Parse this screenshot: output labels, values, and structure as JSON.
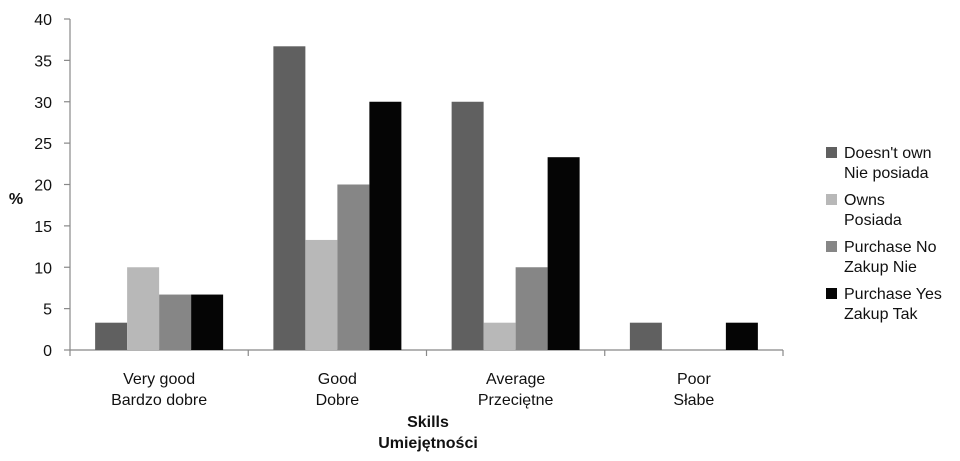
{
  "chart_data": {
    "type": "bar",
    "categories": [
      [
        "Very good",
        "Bardzo dobre"
      ],
      [
        "Good",
        "Dobre"
      ],
      [
        "Average",
        "Przeciętne"
      ],
      [
        "Poor",
        "Słabe"
      ]
    ],
    "series": [
      {
        "name": [
          "Doesn't own",
          "Nie posiada"
        ],
        "color": "#606060",
        "values": [
          3.3,
          36.7,
          30.0,
          3.3
        ]
      },
      {
        "name": [
          "Owns",
          "Posiada"
        ],
        "color": "#b8b8b8",
        "values": [
          10.0,
          13.3,
          3.3,
          0
        ]
      },
      {
        "name": [
          "Purchase No",
          "Zakup Nie"
        ],
        "color": "#868686",
        "values": [
          6.7,
          20.0,
          10.0,
          0
        ]
      },
      {
        "name": [
          "Purchase Yes",
          "Zakup Tak"
        ],
        "color": "#050505",
        "values": [
          6.7,
          30.0,
          23.3,
          3.3
        ]
      }
    ],
    "ylabel": "%",
    "xlabel": [
      "Skills",
      "Umiejętności"
    ],
    "ylim": [
      0,
      40
    ],
    "yticks": [
      0,
      5,
      10,
      15,
      20,
      25,
      30,
      35,
      40
    ],
    "grid": false,
    "legend": "right"
  }
}
